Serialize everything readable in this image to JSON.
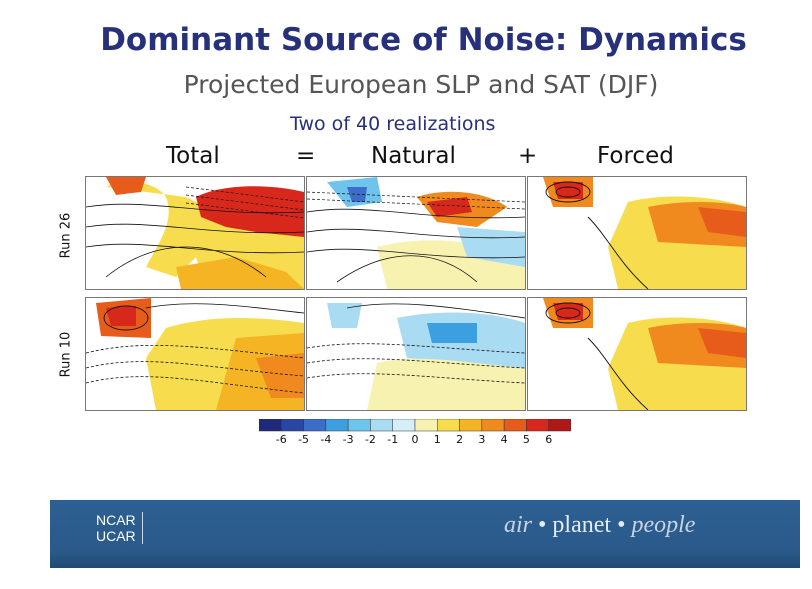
{
  "slide": {
    "title": "Dominant Source of Noise: Dynamics",
    "subtitle": "Projected European SLP and SAT (DJF)",
    "note": "Two of 40 realizations"
  },
  "equation": {
    "total": "Total",
    "equals": "=",
    "natural": "Natural",
    "plus": "+",
    "forced": "Forced"
  },
  "rows": [
    "Run 26",
    "Run 10"
  ],
  "colorbar": {
    "ticks": [
      "-6",
      "-5",
      "-4",
      "-3",
      "-2",
      "-1",
      "0",
      "1",
      "2",
      "3",
      "4",
      "5",
      "6"
    ],
    "colors": [
      "#1f2a7a",
      "#2a46a5",
      "#3d6cc9",
      "#3b9fe0",
      "#6fc4ee",
      "#a9dcf2",
      "#d6eef8",
      "#f8f2b0",
      "#f7dc4e",
      "#f5b424",
      "#f08a1f",
      "#e85c1b",
      "#d8281c",
      "#b01818"
    ]
  },
  "footer": {
    "org_line1": "NCAR",
    "org_line2": "UCAR",
    "tag_air": "air",
    "tag_sep1": "•",
    "tag_planet": "planet",
    "tag_sep2": "•",
    "tag_people": "people"
  }
}
